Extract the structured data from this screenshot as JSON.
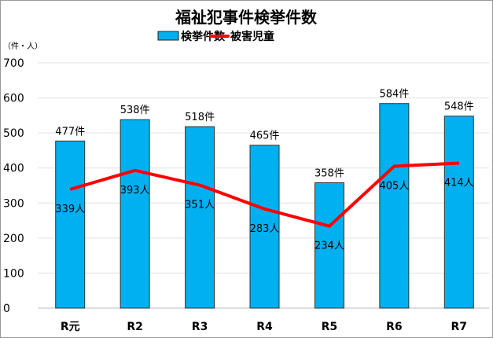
{
  "chart_data": {
    "type": "bar",
    "title": "福祉犯事件検挙件数",
    "yunit": "（件・人）",
    "categories": [
      "R元",
      "R2",
      "R3",
      "R4",
      "R5",
      "R6",
      "R7"
    ],
    "ylim": [
      0,
      700
    ],
    "yticks": [
      0,
      100,
      200,
      300,
      400,
      500,
      600,
      700
    ],
    "grid": true,
    "legend_placement": "top",
    "series": [
      {
        "name": "検挙件数",
        "type": "bar",
        "color": "#00b0f0",
        "values": [
          477,
          538,
          518,
          465,
          358,
          584,
          548
        ],
        "label_suffix": "件"
      },
      {
        "name": "被害児童",
        "type": "line",
        "color": "#ff0000",
        "values": [
          339,
          393,
          351,
          283,
          234,
          405,
          414
        ],
        "label_suffix": "人"
      }
    ]
  }
}
